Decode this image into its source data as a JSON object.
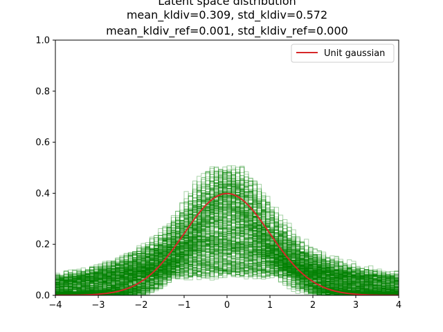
{
  "chart_data": {
    "type": "line",
    "title_lines": [
      "Latent space distribution",
      "mean_kldiv=0.309, std_kldiv=0.572",
      "mean_kldiv_ref=0.001, std_kldiv_ref=0.000"
    ],
    "xlim": [
      -4,
      4
    ],
    "ylim": [
      0,
      1
    ],
    "x_ticks": [
      "−4",
      "−3",
      "−2",
      "−1",
      "0",
      "1",
      "2",
      "3",
      "4"
    ],
    "y_ticks": [
      "0.0",
      "0.2",
      "0.4",
      "0.6",
      "0.8",
      "1.0"
    ],
    "grid": false,
    "legend": {
      "position": "top-right",
      "entries": [
        {
          "label": "Unit gaussian",
          "color": "#d62728"
        }
      ]
    },
    "reference_curve": {
      "name": "Unit gaussian",
      "kind": "standard normal pdf",
      "mean": 0,
      "std": 1,
      "peak": 0.399,
      "color": "#d62728"
    },
    "histograms": {
      "description_type": "step histograms of latent dimensions",
      "color": "#008000",
      "approx_count": 300,
      "peak_range": [
        0.0,
        0.47
      ],
      "typical_std_range": [
        0.6,
        5.0
      ],
      "typical_mean_range": [
        -1.0,
        1.0
      ]
    }
  }
}
